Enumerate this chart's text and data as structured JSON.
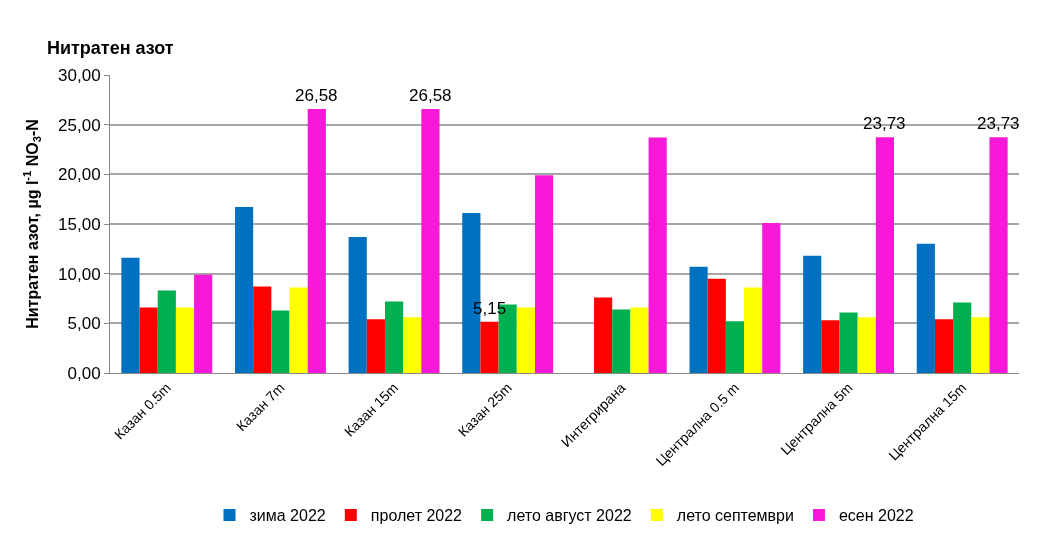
{
  "chart_data": {
    "type": "bar",
    "title": "Нитратен азот",
    "ylabel": "Нитратен азот, µg l$^{-1}$ NO$_{3}$-N",
    "categories": [
      "Казан 0.5m",
      "Казан 7m",
      "Казан 15m",
      "Казан 25m",
      "Интегрирана",
      "Централна 0.5 m",
      "Централна 5m",
      "Централна 15m"
    ],
    "series": [
      {
        "name": "зима 2022",
        "color": "#0070c0",
        "values": [
          11.6,
          16.7,
          13.7,
          16.1,
          null,
          10.7,
          11.8,
          13.0
        ]
      },
      {
        "name": "пролет 2022",
        "color": "#ff0000",
        "values": [
          6.6,
          8.7,
          5.4,
          5.15,
          7.6,
          9.5,
          5.3,
          5.4
        ],
        "value_labels": [
          null,
          null,
          null,
          "5,15",
          null,
          null,
          null,
          null
        ]
      },
      {
        "name": "лето август 2022",
        "color": "#00b050",
        "values": [
          8.3,
          6.3,
          7.2,
          6.9,
          6.4,
          5.2,
          6.1,
          7.1
        ]
      },
      {
        "name": "лето септември",
        "color": "#ffff00",
        "values": [
          6.6,
          8.6,
          5.6,
          6.6,
          6.6,
          8.6,
          5.6,
          5.6
        ]
      },
      {
        "name": "есен 2022",
        "color": "#f819d8",
        "values": [
          9.9,
          26.58,
          26.58,
          19.9,
          23.7,
          15.1,
          23.73,
          23.73
        ],
        "value_labels": [
          null,
          "26,58",
          "26,58",
          null,
          null,
          null,
          "23,73",
          "23,73"
        ]
      }
    ],
    "ylim": [
      0,
      30
    ],
    "yticks": [
      {
        "value": 0,
        "label": "0,00"
      },
      {
        "value": 5,
        "label": "5,00"
      },
      {
        "value": 10,
        "label": "10,00"
      },
      {
        "value": 15,
        "label": "15,00"
      },
      {
        "value": 20,
        "label": "20,00"
      },
      {
        "value": 25,
        "label": "25,00"
      },
      {
        "value": 30,
        "label": "30,00"
      }
    ],
    "grid": "y",
    "legend": "bottom"
  }
}
